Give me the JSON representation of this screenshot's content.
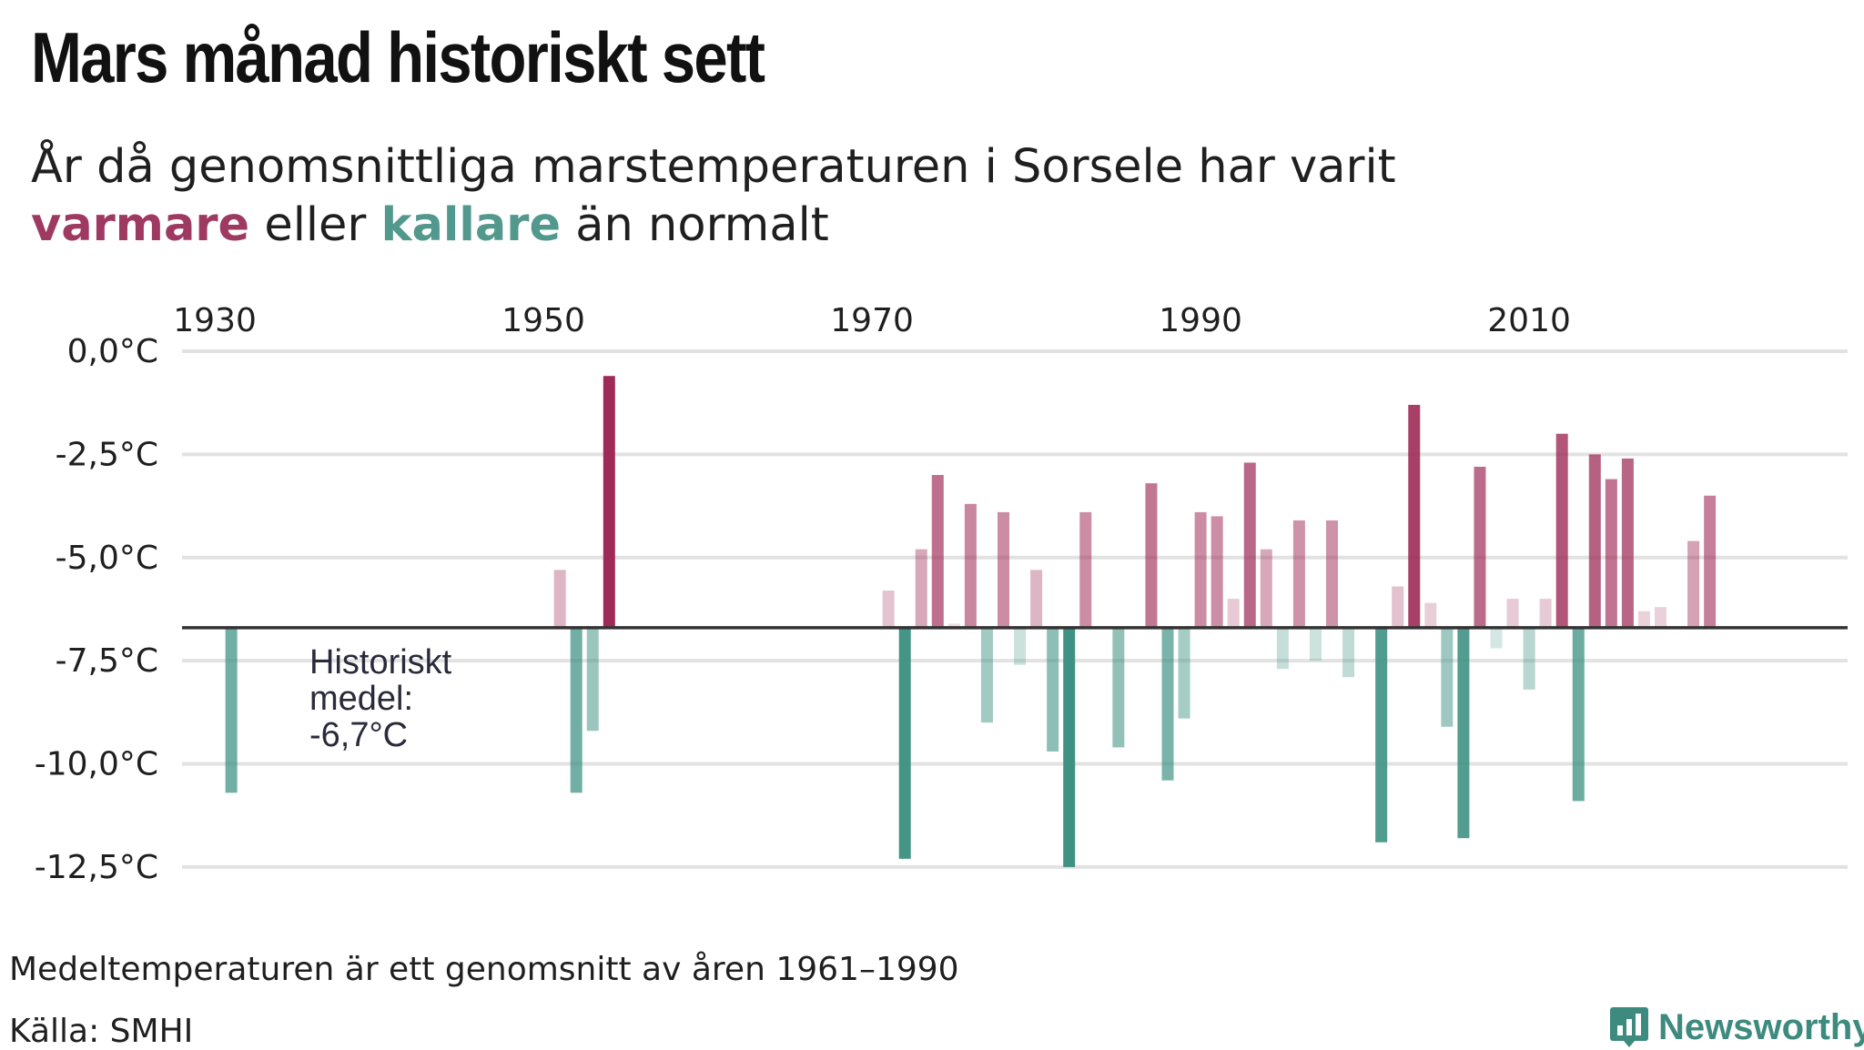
{
  "header": {
    "title": "Mars månad historiskt sett",
    "subtitle_part1": "År då genomsnittliga marstemperaturen i Sorsele har varit ",
    "subtitle_warm": "varmare",
    "subtitle_mid": " eller ",
    "subtitle_cold": "kallare",
    "subtitle_end": " än normalt"
  },
  "footer": {
    "note": "Medeltemperaturen är ett genomsnitt av åren 1961–1990",
    "source": "Källa: SMHI",
    "brand": "Newsworthy",
    "brand_icon": "bar-chart-speech-icon"
  },
  "colors": {
    "warm": "#9e2a57",
    "cold": "#3f9283",
    "baseline": "#333333",
    "grid": "#e2e2e2"
  },
  "chart_data": {
    "type": "bar",
    "baseline": -6.7,
    "baseline_label": [
      "Historiskt",
      "medel:",
      "-6,7°C"
    ],
    "ylim": [
      -12.7,
      0
    ],
    "y_ticks": [
      {
        "value": 0,
        "label": "0,0°C"
      },
      {
        "value": -2.5,
        "label": "-2,5°C"
      },
      {
        "value": -5,
        "label": "-5,0°C"
      },
      {
        "value": -7.5,
        "label": "-7,5°C"
      },
      {
        "value": -10,
        "label": "-10,0°C"
      },
      {
        "value": -12.5,
        "label": "-12,5°C"
      }
    ],
    "x_ticks": [
      {
        "value": 1930,
        "label": "1930"
      },
      {
        "value": 1950,
        "label": "1950"
      },
      {
        "value": 1970,
        "label": "1970"
      },
      {
        "value": 1990,
        "label": "1990"
      },
      {
        "value": 2010,
        "label": "2010"
      }
    ],
    "xlim": [
      1928,
      2030
    ],
    "x": [
      1931,
      1951,
      1952,
      1953,
      1954,
      1971,
      1972,
      1973,
      1974,
      1975,
      1976,
      1977,
      1978,
      1979,
      1980,
      1981,
      1982,
      1983,
      1985,
      1987,
      1988,
      1989,
      1990,
      1991,
      1992,
      1993,
      1994,
      1995,
      1996,
      1997,
      1998,
      1999,
      2001,
      2002,
      2003,
      2004,
      2005,
      2006,
      2007,
      2008,
      2009,
      2010,
      2011,
      2012,
      2013,
      2014,
      2015,
      2016,
      2017,
      2018,
      2020,
      2021,
      2022
    ],
    "values": [
      -10.7,
      -5.3,
      -10.7,
      -9.2,
      -0.6,
      -5.8,
      -12.3,
      -4.8,
      -3.0,
      -6.6,
      -3.7,
      -9.0,
      -3.9,
      -7.6,
      -5.3,
      -9.7,
      -12.5,
      -3.9,
      -9.6,
      -3.2,
      -10.4,
      -8.9,
      -3.9,
      -4.0,
      -6.0,
      -2.7,
      -4.8,
      -7.7,
      -4.1,
      -7.5,
      -4.1,
      -7.9,
      -11.9,
      -5.7,
      -1.3,
      -6.1,
      -9.1,
      -11.8,
      -2.8,
      -7.2,
      -6.0,
      -8.2,
      -6.0,
      -2.0,
      -10.9,
      -2.5,
      -3.1,
      -2.6,
      -6.3,
      -6.2,
      -4.6,
      -3.5,
      -6.7
    ]
  }
}
